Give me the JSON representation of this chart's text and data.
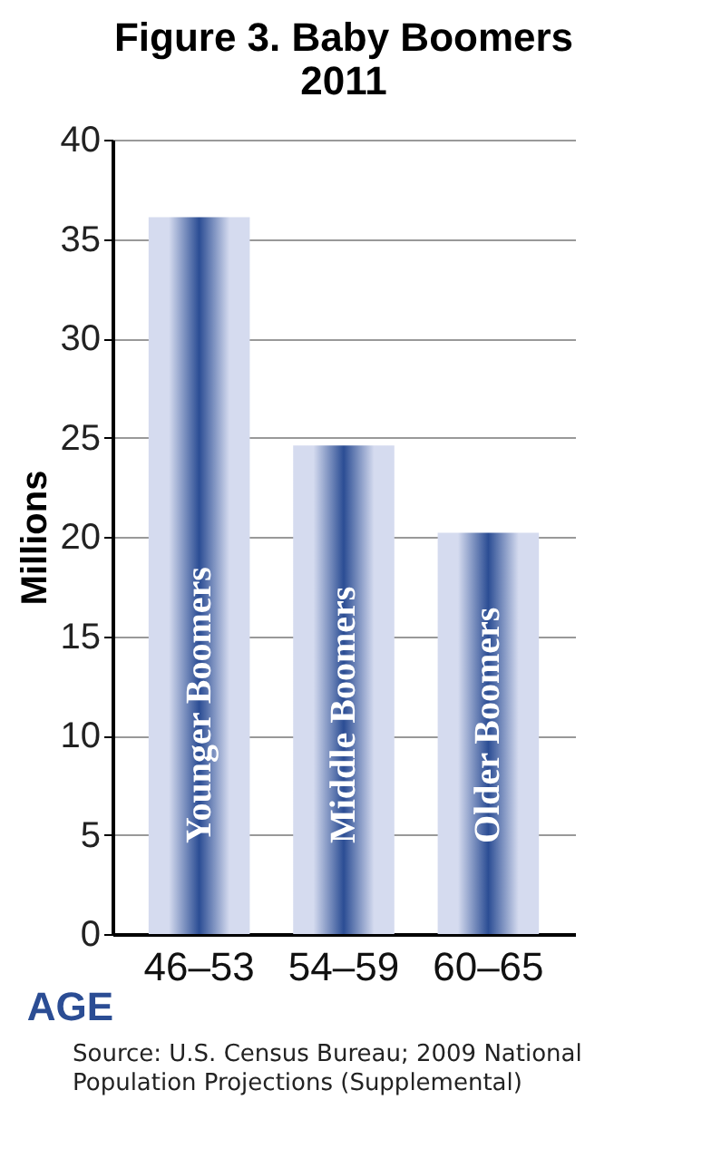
{
  "chart_data": {
    "type": "bar",
    "title": "Figure 3. Baby Boomers\n2011",
    "xlabel": "AGE",
    "ylabel": "Millions",
    "categories": [
      "46–53",
      "54–59",
      "60–65"
    ],
    "values": [
      36.1,
      24.6,
      20.2
    ],
    "color": "#2b4d94",
    "ylim": [
      0,
      40
    ],
    "yticks": [
      0,
      5,
      10,
      15,
      20,
      25,
      30,
      35,
      40
    ],
    "grid": "y",
    "value_labels": [
      "Younger Boomers",
      "Middle Boomers",
      "Older Boomers"
    ],
    "annotations": [
      "Source: U.S. Census Bureau; 2009 National Population Projections (Supplemental)"
    ]
  }
}
